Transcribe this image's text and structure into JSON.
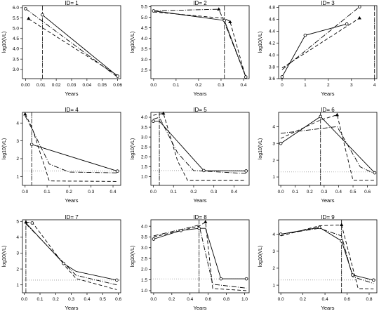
{
  "chart_data": [
    {
      "type": "line",
      "title": "ID= 1",
      "xlabel": "Years",
      "ylabel": "log10(VL)",
      "xlim": [
        -0.002,
        0.062
      ],
      "ylim": [
        2.55,
        6.1
      ],
      "xticks": [
        "0.00",
        "0.01",
        "0.02",
        "0.03",
        "0.04",
        "0.05",
        "0.06"
      ],
      "xtick_values": [
        0,
        0.01,
        0.02,
        0.03,
        0.04,
        0.05,
        0.06
      ],
      "yticks": [
        "3.0",
        "3.5",
        "4.0",
        "4.5",
        "5.0",
        "5.5",
        "6.0"
      ],
      "ytick_values": [
        3,
        3.5,
        4,
        4.5,
        5,
        5.5,
        6
      ],
      "vline": 0.011,
      "series": [
        {
          "style": "solid",
          "x": [
            0.011,
            0.06
          ],
          "y": [
            5.65,
            2.67
          ]
        },
        {
          "style": "dashed",
          "x": [
            0.002,
            0.06
          ],
          "y": [
            5.45,
            2.7
          ]
        },
        {
          "style": "dotdash",
          "x": [
            0.0,
            0.06
          ],
          "y": [
            5.95,
            2.62
          ]
        }
      ],
      "observed": [
        {
          "marker": "circle",
          "x": 0.0,
          "y": 5.95
        },
        {
          "marker": "triangle",
          "x": 0.002,
          "y": 5.47
        },
        {
          "marker": "circle",
          "x": 0.011,
          "y": 5.65
        },
        {
          "marker": "circle",
          "x": 0.06,
          "y": 2.67
        }
      ]
    },
    {
      "type": "line",
      "title": "ID= 2",
      "xlabel": "Years",
      "ylabel": "log10(VL)",
      "xlim": [
        -0.012,
        0.425
      ],
      "ylim": [
        2.1,
        5.55
      ],
      "xticks": [
        "0.0",
        "0.1",
        "0.2",
        "0.3",
        "0.4"
      ],
      "xtick_values": [
        0,
        0.1,
        0.2,
        0.3,
        0.4
      ],
      "yticks": [
        "2.5",
        "3.0",
        "3.5",
        "4.0",
        "4.5",
        "5.0",
        "5.5"
      ],
      "ytick_values": [
        2.5,
        3,
        3.5,
        4,
        4.5,
        5,
        5.5
      ],
      "vline": 0.315,
      "series": [
        {
          "style": "solid",
          "x": [
            0.0,
            0.315,
            0.41
          ],
          "y": [
            5.3,
            4.85,
            2.18
          ]
        },
        {
          "style": "dashed",
          "x": [
            0.0,
            0.315,
            0.34,
            0.41
          ],
          "y": [
            5.25,
            4.95,
            4.8,
            2.15
          ]
        },
        {
          "style": "dotdash",
          "x": [
            0.0,
            0.29,
            0.315,
            0.41
          ],
          "y": [
            5.3,
            5.38,
            4.75,
            2.2
          ]
        }
      ],
      "observed": [
        {
          "marker": "circle",
          "x": 0.0,
          "y": 5.3
        },
        {
          "marker": "triangle",
          "x": 0.29,
          "y": 5.38
        },
        {
          "marker": "circle",
          "x": 0.315,
          "y": 4.85
        },
        {
          "marker": "triangle",
          "x": 0.34,
          "y": 4.78
        },
        {
          "marker": "circle",
          "x": 0.41,
          "y": 2.18
        }
      ]
    },
    {
      "type": "line",
      "title": "ID= 3",
      "xlabel": "Years",
      "ylabel": "log10(VL)",
      "xlim": [
        -0.15,
        4.1
      ],
      "ylim": [
        3.6,
        4.83
      ],
      "xticks": [
        "0",
        "1",
        "2",
        "3",
        "4"
      ],
      "xtick_values": [
        0,
        1,
        2,
        3,
        4
      ],
      "yticks": [
        "3.6",
        "3.8",
        "4.0",
        "4.2",
        "4.4",
        "4.6",
        "4.8"
      ],
      "ytick_values": [
        3.6,
        3.8,
        4.0,
        4.2,
        4.4,
        4.6,
        4.8
      ],
      "vline": 4.0,
      "series": [
        {
          "style": "solid",
          "x": [
            0.0,
            1.0,
            2.8
          ],
          "y": [
            3.63,
            4.33,
            4.52
          ]
        },
        {
          "style": "dashed",
          "x": [
            0.0,
            3.35
          ],
          "y": [
            3.78,
            4.62
          ]
        },
        {
          "style": "dotdash",
          "x": [
            0.0,
            3.35
          ],
          "y": [
            3.75,
            4.81
          ]
        }
      ],
      "observed": [
        {
          "marker": "circle",
          "x": 0.0,
          "y": 3.63
        },
        {
          "marker": "circle",
          "x": 1.0,
          "y": 4.33
        },
        {
          "marker": "circle",
          "x": 2.8,
          "y": 4.52
        },
        {
          "marker": "triangle",
          "x": 3.35,
          "y": 4.62
        },
        {
          "marker": "circle",
          "x": 3.35,
          "y": 4.81
        }
      ]
    },
    {
      "type": "line",
      "title": "ID= 4",
      "xlabel": "Years",
      "ylabel": "log10(VL)",
      "xlim": [
        -0.012,
        0.435
      ],
      "ylim": [
        0.5,
        4.6
      ],
      "xticks": [
        "0.0",
        "0.1",
        "0.2",
        "0.3",
        "0.4"
      ],
      "xtick_values": [
        0,
        0.1,
        0.2,
        0.3,
        0.4
      ],
      "yticks": [
        "1",
        "2",
        "3",
        "4"
      ],
      "ytick_values": [
        1,
        2,
        3,
        4
      ],
      "vline": 0.03,
      "hline": 1.3,
      "series": [
        {
          "style": "solid",
          "x": [
            0.03,
            0.42
          ],
          "y": [
            2.8,
            1.3
          ]
        },
        {
          "style": "dashed",
          "x": [
            0.0,
            0.03,
            0.11,
            0.42
          ],
          "y": [
            4.5,
            3.8,
            0.75,
            0.72
          ]
        },
        {
          "style": "dotdash",
          "x": [
            0.0,
            0.03,
            0.11,
            0.2,
            0.42
          ],
          "y": [
            4.4,
            3.7,
            1.7,
            1.25,
            1.2
          ]
        }
      ],
      "observed": [
        {
          "marker": "triangle",
          "x": 0.0,
          "y": 4.5
        },
        {
          "marker": "circle",
          "x": 0.03,
          "y": 2.8
        },
        {
          "marker": "circle",
          "x": 0.42,
          "y": 1.3
        }
      ]
    },
    {
      "type": "line",
      "title": "ID= 5",
      "xlabel": "Years",
      "ylabel": "log10(VL)",
      "xlim": [
        -0.012,
        0.475
      ],
      "ylim": [
        0.55,
        4.25
      ],
      "xticks": [
        "0.0",
        "0.1",
        "0.2",
        "0.3",
        "0.4"
      ],
      "xtick_values": [
        0,
        0.1,
        0.2,
        0.3,
        0.4
      ],
      "yticks": [
        "1.0",
        "1.5",
        "2.0",
        "2.5",
        "3.0",
        "3.5",
        "4.0"
      ],
      "ytick_values": [
        1,
        1.5,
        2,
        2.5,
        3,
        3.5,
        4
      ],
      "vline": 0.03,
      "hline": 1.3,
      "series": [
        {
          "style": "solid",
          "x": [
            0.0,
            0.03,
            0.25,
            0.46
          ],
          "y": [
            3.8,
            3.8,
            1.3,
            1.28
          ]
        },
        {
          "style": "dashed",
          "x": [
            0.0,
            0.05,
            0.12,
            0.17,
            0.46
          ],
          "y": [
            4.1,
            4.2,
            1.8,
            0.8,
            0.8
          ]
        },
        {
          "style": "dotdash",
          "x": [
            0.0,
            0.03,
            0.12,
            0.2,
            0.46
          ],
          "y": [
            3.9,
            4.0,
            2.2,
            1.3,
            1.15
          ]
        }
      ],
      "observed": [
        {
          "marker": "circle",
          "x": 0.0,
          "y": 3.8
        },
        {
          "marker": "triangle",
          "x": 0.05,
          "y": 4.2
        },
        {
          "marker": "circle",
          "x": 0.25,
          "y": 1.3
        },
        {
          "marker": "circle",
          "x": 0.46,
          "y": 1.28
        }
      ]
    },
    {
      "type": "line",
      "title": "ID= 6",
      "xlabel": "Years",
      "ylabel": "log10(VL)",
      "xlim": [
        -0.015,
        0.665
      ],
      "ylim": [
        0.5,
        4.85
      ],
      "xticks": [
        "0.0",
        "0.1",
        "0.2",
        "0.3",
        "0.4",
        "0.5",
        "0.6"
      ],
      "xtick_values": [
        0,
        0.1,
        0.2,
        0.3,
        0.4,
        0.5,
        0.6
      ],
      "yticks": [
        "1",
        "2",
        "3",
        "4"
      ],
      "ytick_values": [
        1,
        2,
        3,
        4
      ],
      "vline": 0.275,
      "hline": 1.3,
      "series": [
        {
          "style": "solid",
          "x": [
            0.0,
            0.275,
            0.65
          ],
          "y": [
            3.0,
            4.6,
            1.25
          ]
        },
        {
          "style": "dashed",
          "x": [
            0.0,
            0.275,
            0.39,
            0.5,
            0.65
          ],
          "y": [
            3.3,
            4.4,
            4.7,
            0.8,
            0.8
          ]
        },
        {
          "style": "dotdash",
          "x": [
            0.0,
            0.39,
            0.55,
            0.65
          ],
          "y": [
            3.6,
            4.0,
            1.6,
            1.2
          ]
        }
      ],
      "observed": [
        {
          "marker": "circle",
          "x": 0.0,
          "y": 3.0
        },
        {
          "marker": "circle",
          "x": 0.275,
          "y": 4.6
        },
        {
          "marker": "triangle",
          "x": 0.39,
          "y": 4.7
        },
        {
          "marker": "circle",
          "x": 0.65,
          "y": 1.25
        }
      ]
    },
    {
      "type": "line",
      "title": "ID= 7",
      "xlabel": "Years",
      "ylabel": "log10(VL)",
      "xlim": [
        -0.012,
        0.615
      ],
      "ylim": [
        0.5,
        5.1
      ],
      "xticks": [
        "0.0",
        "0.1",
        "0.2",
        "0.3",
        "0.4",
        "0.5",
        "0.6"
      ],
      "xtick_values": [
        0,
        0.1,
        0.2,
        0.3,
        0.4,
        0.5,
        0.6
      ],
      "yticks": [
        "1",
        "2",
        "3",
        "4",
        "5"
      ],
      "ytick_values": [
        1,
        2,
        3,
        4,
        5
      ],
      "vline": 0.01,
      "hline": 1.3,
      "series": [
        {
          "style": "solid",
          "x": [
            0.01,
            0.25,
            0.33,
            0.59
          ],
          "y": [
            4.9,
            2.35,
            1.85,
            1.3
          ]
        },
        {
          "style": "dashed",
          "x": [
            0.01,
            0.05,
            0.25,
            0.33,
            0.59
          ],
          "y": [
            4.95,
            4.95,
            2.3,
            1.4,
            0.7
          ]
        },
        {
          "style": "dotdash",
          "x": [
            0.01,
            0.25,
            0.33,
            0.59
          ],
          "y": [
            4.85,
            2.4,
            1.6,
            1.0
          ]
        }
      ],
      "observed": [
        {
          "marker": "triangle",
          "x": 0.01,
          "y": 4.95
        },
        {
          "marker": "circle",
          "x": 0.05,
          "y": 4.9
        },
        {
          "marker": "circle",
          "x": 0.25,
          "y": 2.35
        },
        {
          "marker": "circle",
          "x": 0.59,
          "y": 1.3
        }
      ]
    },
    {
      "type": "line",
      "title": "ID= 8",
      "xlabel": "Years",
      "ylabel": "log10(VL)",
      "xlim": [
        -0.03,
        1.05
      ],
      "ylim": [
        0.9,
        4.3
      ],
      "xticks": [
        "0.0",
        "0.2",
        "0.4",
        "0.6",
        "0.8",
        "1.0"
      ],
      "xtick_values": [
        0,
        0.2,
        0.4,
        0.6,
        0.8,
        1.0
      ],
      "yticks": [
        "1.0",
        "1.5",
        "2.0",
        "2.5",
        "3.0",
        "3.5",
        "4.0"
      ],
      "ytick_values": [
        1,
        1.5,
        2,
        2.5,
        3,
        3.5,
        4
      ],
      "vline": 0.5,
      "hline": 1.55,
      "series": [
        {
          "style": "solid",
          "x": [
            0.0,
            0.3,
            0.5,
            0.57,
            0.74,
            1.02
          ],
          "y": [
            3.4,
            3.8,
            3.9,
            3.9,
            1.55,
            1.55
          ]
        },
        {
          "style": "dashed",
          "x": [
            0.0,
            0.5,
            0.57,
            0.65,
            1.02
          ],
          "y": [
            3.5,
            4.0,
            4.2,
            1.1,
            1.0
          ]
        },
        {
          "style": "dotdash",
          "x": [
            0.0,
            0.5,
            0.65,
            1.02
          ],
          "y": [
            3.55,
            4.05,
            1.3,
            1.12
          ]
        }
      ],
      "observed": [
        {
          "marker": "circle",
          "x": 0.0,
          "y": 3.4
        },
        {
          "marker": "circle",
          "x": 0.3,
          "y": 3.8
        },
        {
          "marker": "circle",
          "x": 0.5,
          "y": 3.9
        },
        {
          "marker": "triangle",
          "x": 0.57,
          "y": 4.2
        },
        {
          "marker": "circle",
          "x": 0.74,
          "y": 1.55
        },
        {
          "marker": "circle",
          "x": 1.02,
          "y": 1.55
        }
      ]
    },
    {
      "type": "line",
      "title": "ID= 9",
      "xlabel": "Years",
      "ylabel": "log10(VL)",
      "xlim": [
        -0.02,
        0.87
      ],
      "ylim": [
        0.55,
        4.85
      ],
      "xticks": [
        "0.0",
        "0.2",
        "0.4",
        "0.6",
        "0.8"
      ],
      "xtick_values": [
        0,
        0.2,
        0.4,
        0.6,
        0.8
      ],
      "yticks": [
        "1",
        "2",
        "3",
        "4"
      ],
      "ytick_values": [
        1,
        2,
        3,
        4
      ],
      "vline": 0.55,
      "hline": 1.3,
      "series": [
        {
          "style": "solid",
          "x": [
            0.0,
            0.35,
            0.55,
            0.65,
            0.84
          ],
          "y": [
            4.0,
            4.4,
            3.6,
            1.6,
            1.3
          ]
        },
        {
          "style": "dashed",
          "x": [
            0.0,
            0.35,
            0.55,
            0.7,
            0.84
          ],
          "y": [
            3.9,
            4.5,
            4.55,
            0.8,
            0.78
          ]
        },
        {
          "style": "dotdash",
          "x": [
            0.0,
            0.35,
            0.55,
            0.65,
            0.84
          ],
          "y": [
            4.0,
            4.35,
            3.9,
            1.5,
            1.1
          ]
        }
      ],
      "observed": [
        {
          "marker": "circle",
          "x": 0.0,
          "y": 4.0
        },
        {
          "marker": "circle",
          "x": 0.35,
          "y": 4.4
        },
        {
          "marker": "triangle",
          "x": 0.55,
          "y": 4.55
        },
        {
          "marker": "circle",
          "x": 0.55,
          "y": 3.6
        },
        {
          "marker": "circle",
          "x": 0.65,
          "y": 1.6
        },
        {
          "marker": "circle",
          "x": 0.84,
          "y": 1.3
        }
      ]
    }
  ]
}
